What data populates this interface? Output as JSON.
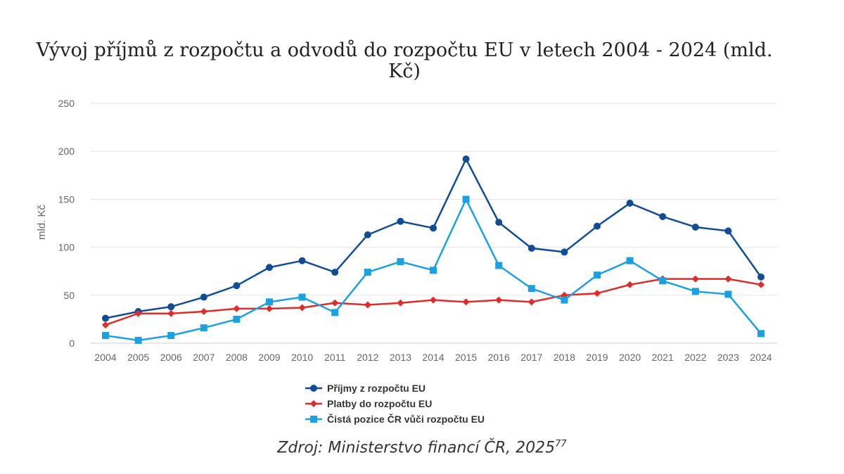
{
  "chart_data": {
    "type": "line",
    "title_line1": "Vývoj příjmů z rozpočtu a odvodů do rozpočtu EU v letech 2004 - 2024 (mld.",
    "title_line2": "Kč)",
    "ylabel": "mld. Kč",
    "ylim": [
      0,
      250
    ],
    "yticks": [
      0,
      50,
      100,
      150,
      200,
      250
    ],
    "grid": true,
    "legend_position": "bottom",
    "categories": [
      "2004",
      "2005",
      "2006",
      "2007",
      "2008",
      "2009",
      "2010",
      "2011",
      "2012",
      "2013",
      "2014",
      "2015",
      "2016",
      "2017",
      "2018",
      "2019",
      "2020",
      "2021",
      "2022",
      "2023",
      "2024"
    ],
    "series": [
      {
        "name": "Příjmy z rozpočtu EU",
        "color": "#114d96",
        "marker": "circle",
        "values": [
          26,
          33,
          38,
          48,
          60,
          79,
          86,
          74,
          113,
          127,
          120,
          192,
          126,
          99,
          95,
          122,
          146,
          132,
          121,
          117,
          69
        ]
      },
      {
        "name": "Platby do rozpočtu EU",
        "color": "#e02b2b",
        "marker": "diamond",
        "values": [
          19,
          31,
          31,
          33,
          36,
          36,
          37,
          42,
          40,
          42,
          45,
          43,
          45,
          43,
          50,
          52,
          61,
          67,
          67,
          67,
          61
        ]
      },
      {
        "name": "Čistá pozice ČR vůči rozpočtu EU",
        "color": "#1ba0e2",
        "marker": "square",
        "values": [
          8,
          3,
          8,
          16,
          25,
          43,
          48,
          32,
          74,
          85,
          76,
          150,
          81,
          57,
          45,
          71,
          86,
          65,
          54,
          51,
          10
        ]
      }
    ]
  },
  "source": {
    "text": "Zdroj: Ministerstvo financí ČR, 2025",
    "footnote": "77"
  }
}
